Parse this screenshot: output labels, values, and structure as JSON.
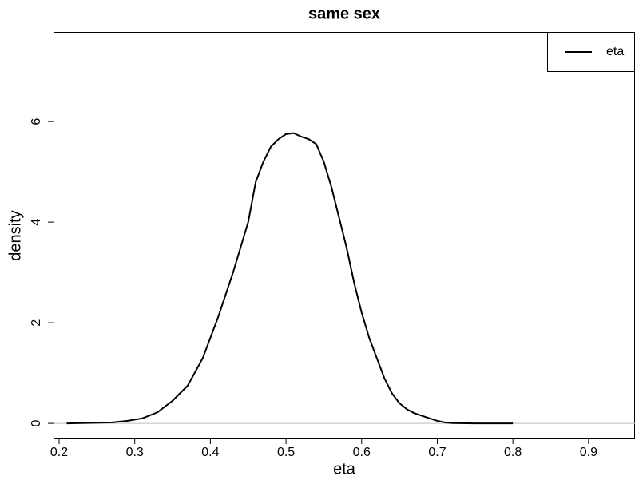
{
  "chart_data": {
    "type": "line",
    "title": "same sex",
    "xlabel": "eta",
    "ylabel": "density",
    "x": [
      0.21,
      0.24,
      0.27,
      0.29,
      0.31,
      0.33,
      0.35,
      0.37,
      0.39,
      0.41,
      0.43,
      0.45,
      0.46,
      0.47,
      0.48,
      0.49,
      0.5,
      0.51,
      0.52,
      0.53,
      0.54,
      0.55,
      0.56,
      0.57,
      0.58,
      0.59,
      0.6,
      0.61,
      0.62,
      0.63,
      0.64,
      0.65,
      0.66,
      0.67,
      0.68,
      0.69,
      0.7,
      0.71,
      0.72,
      0.75,
      0.8
    ],
    "series": [
      {
        "name": "eta",
        "color": "#000000",
        "values": [
          0,
          0.01,
          0.02,
          0.05,
          0.1,
          0.22,
          0.45,
          0.75,
          1.3,
          2.1,
          3.0,
          4.0,
          4.8,
          5.2,
          5.5,
          5.65,
          5.75,
          5.77,
          5.7,
          5.65,
          5.55,
          5.2,
          4.7,
          4.1,
          3.5,
          2.8,
          2.2,
          1.7,
          1.3,
          0.9,
          0.6,
          0.4,
          0.28,
          0.2,
          0.15,
          0.1,
          0.05,
          0.02,
          0.005,
          0,
          0
        ]
      }
    ],
    "xlim": [
      0.1926,
      0.9614
    ],
    "ylim": [
      -0.3,
      7.78
    ],
    "xticks": [
      0.2,
      0.3,
      0.4,
      0.5,
      0.6,
      0.7,
      0.8,
      0.9
    ],
    "yticks": [
      0,
      2,
      4,
      6
    ],
    "hline": 0,
    "hline_color": "#bebebe",
    "legend": "top-right"
  }
}
